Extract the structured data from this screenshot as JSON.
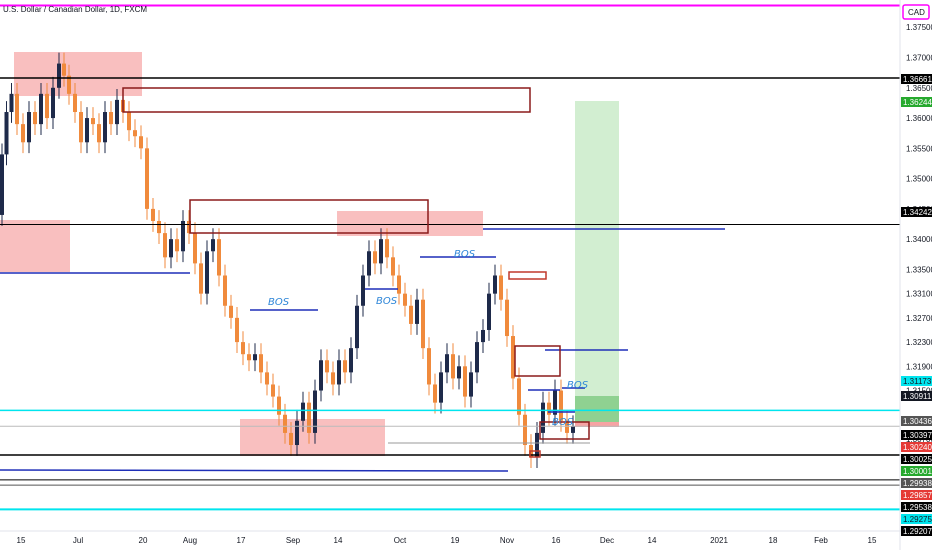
{
  "chart_data": {
    "type": "candlestick",
    "title": "U.S. Dollar / Canadian Dollar, 1D, FXCM",
    "currency_label": "CAD",
    "x_tick_labels": [
      "15",
      "Jul",
      "20",
      "Aug",
      "17",
      "Sep",
      "14",
      "Oct",
      "19",
      "Nov",
      "16",
      "Dec",
      "14",
      "2021",
      "18",
      "Feb",
      "15"
    ],
    "y_range": [
      1.2918,
      1.3795
    ],
    "y_ticks": [
      "1.37500",
      "1.37000",
      "1.36500",
      "1.36000",
      "1.35500",
      "1.35000",
      "1.34500",
      "1.34000",
      "1.33500",
      "1.33100",
      "1.32700",
      "1.32300",
      "1.31900",
      "1.31500",
      "1.30700"
    ],
    "price_tags": [
      {
        "label": "1.36661",
        "value": 1.36661,
        "bg": "#000000"
      },
      {
        "label": "1.36244",
        "value": 1.36244,
        "bg": "#26a92e"
      },
      {
        "label": "1.34242",
        "value": 1.34242,
        "bg": "#000000"
      },
      {
        "label": "1.31173",
        "value": 1.31173,
        "bg": "#00e5ee"
      },
      {
        "label": "1.30911",
        "value": 1.30911,
        "bg": "#131722"
      },
      {
        "label": "1.30436",
        "value": 1.30436,
        "bg": "#555555"
      },
      {
        "label": "1.30397",
        "value": 1.30397,
        "bg": "#000000"
      },
      {
        "label": "1.30240",
        "value": 1.3024,
        "bg": "#e53935"
      },
      {
        "label": "1.30025",
        "value": 1.30025,
        "bg": "#000000"
      },
      {
        "label": "1.30001",
        "value": 1.30001,
        "bg": "#26a92e"
      },
      {
        "label": "1.29938",
        "value": 1.29938,
        "bg": "#555555"
      },
      {
        "label": "1.29857",
        "value": 1.29857,
        "bg": "#e53935"
      },
      {
        "label": "1.29538",
        "value": 1.29538,
        "bg": "#000000"
      },
      {
        "label": "1.29275",
        "value": 1.29275,
        "bg": "#00e5ee"
      },
      {
        "label": "1.29207",
        "value": 1.29207,
        "bg": "#000000"
      }
    ],
    "horizontal_levels": [
      {
        "value": 1.3786,
        "color": "#ff00ff",
        "width": 2
      },
      {
        "value": 1.36661,
        "color": "#000000",
        "width": 1.5
      },
      {
        "value": 1.34242,
        "color": "#000000",
        "width": 1
      },
      {
        "value": 1.31173,
        "color": "#00e5ee",
        "width": 1.5
      },
      {
        "value": 1.30911,
        "color": "#bbbbbb",
        "width": 1
      },
      {
        "value": 1.30436,
        "color": "#000000",
        "width": 1.5
      },
      {
        "value": 1.30025,
        "color": "#000000",
        "width": 1
      },
      {
        "value": 1.29938,
        "color": "#555555",
        "width": 1
      },
      {
        "value": 1.29538,
        "color": "#00e5ee",
        "width": 2
      }
    ],
    "annotations": [
      "BOS",
      "BOS",
      "BOS",
      "BOS",
      "BOS"
    ],
    "colors": {
      "up": "#1e2a4a",
      "down": "#f08a3c",
      "demand_zone": "#f8b4b4",
      "target_zone": "#cdeccc"
    }
  }
}
